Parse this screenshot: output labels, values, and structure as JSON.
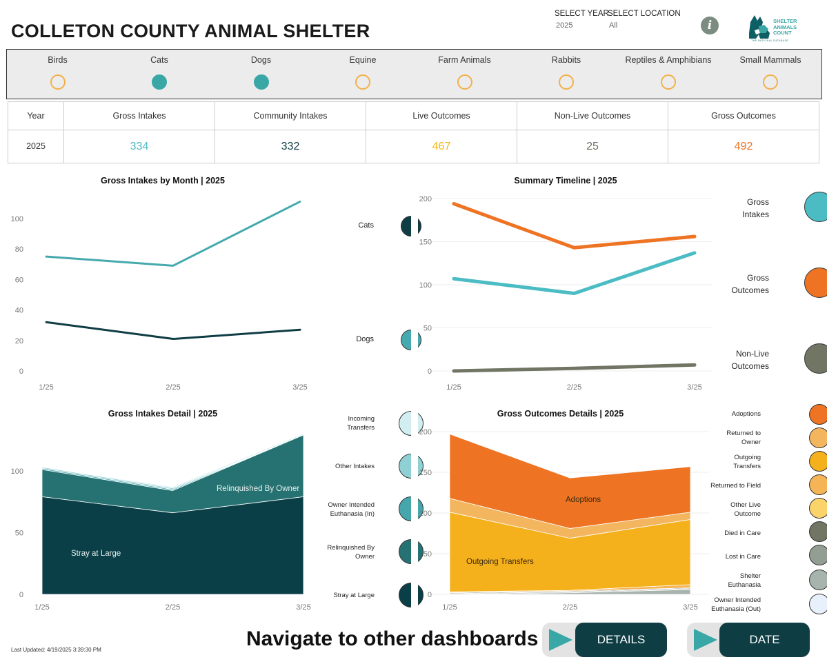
{
  "header": {
    "title": "COLLETON COUNTY ANIMAL SHELTER",
    "select_year_label": "SELECT YEAR",
    "select_year_value": "2025",
    "select_location_label": "SELECT LOCATION",
    "select_location_value": "All",
    "info_glyph": "i",
    "logo_line1": "SHELTER",
    "logo_line2": "ANIMALS",
    "logo_line3": "COUNT",
    "logo_sub": "THE NATIONAL DATABASE"
  },
  "filters": [
    {
      "label": "Birds",
      "selected": false
    },
    {
      "label": "Cats",
      "selected": true
    },
    {
      "label": "Dogs",
      "selected": true
    },
    {
      "label": "Equine",
      "selected": false
    },
    {
      "label": "Farm Animals",
      "selected": false
    },
    {
      "label": "Rabbits",
      "selected": false
    },
    {
      "label": "Reptiles & Amphibians",
      "selected": false
    },
    {
      "label": "Small Mammals",
      "selected": false
    }
  ],
  "kpi": {
    "headers": [
      "Year",
      "Gross Intakes",
      "Community Intakes",
      "Live Outcomes",
      "Non-Live Outcomes",
      "Gross Outcomes"
    ],
    "values": [
      "2025",
      "334",
      "332",
      "467",
      "25",
      "492"
    ],
    "colors": [
      "#333333",
      "#4bbcc4",
      "#0e3d44",
      "#f5b619",
      "#707564",
      "#ee7322"
    ]
  },
  "chart_data": [
    {
      "type": "line",
      "title": "Gross Intakes by Month | 2025",
      "categories": [
        "1/25",
        "2/25",
        "3/25"
      ],
      "series": [
        {
          "name": "Cats",
          "values": [
            75,
            69,
            111
          ],
          "color": "#45a9ad"
        },
        {
          "name": "Dogs",
          "values": [
            32,
            21,
            27
          ],
          "color": "#0e3d44"
        }
      ],
      "yticks": [
        "0",
        "20",
        "40",
        "60",
        "80",
        "100"
      ],
      "ylim": [
        0,
        113
      ],
      "legend": [
        {
          "label": "Cats",
          "color": "#0e3d44"
        },
        {
          "label": "Dogs",
          "color": "#45a9ad"
        }
      ]
    },
    {
      "type": "line",
      "title": "Summary Timeline | 2025",
      "categories": [
        "1/25",
        "2/25",
        "3/25"
      ],
      "series": [
        {
          "name": "Gross Outcomes",
          "values": [
            194,
            143,
            156
          ],
          "color": "#ee7322"
        },
        {
          "name": "Gross Intakes",
          "values": [
            107,
            90,
            137
          ],
          "color": "#4bbcc4"
        },
        {
          "name": "Non-Live Outcomes",
          "values": [
            0,
            3,
            7
          ],
          "color": "#707564"
        }
      ],
      "yticks": [
        "0",
        "50",
        "100",
        "150",
        "200"
      ],
      "ylim": [
        0,
        200
      ],
      "legend": [
        {
          "label1": "Gross",
          "label2": "Intakes",
          "color": "#4bbcc4"
        },
        {
          "label1": "Gross",
          "label2": "Outcomes",
          "color": "#ee7322"
        },
        {
          "label1": "Non-Live",
          "label2": "Outcomes",
          "color": "#707564"
        }
      ]
    },
    {
      "type": "area",
      "title": "Gross Intakes Detail | 2025",
      "categories": [
        "1/25",
        "2/25",
        "3/25"
      ],
      "series": [
        {
          "name": "Stray at Large",
          "values": [
            79,
            66,
            79
          ],
          "color": "#0b3f47"
        },
        {
          "name": "Relinquished By Owner",
          "values": [
            22,
            18,
            50
          ],
          "color": "#267272"
        },
        {
          "name": "Owner Intended Euthanasia (In)",
          "values": [
            1,
            1,
            0
          ],
          "color": "#46a6ab"
        },
        {
          "name": "Other Intakes",
          "values": [
            1,
            1,
            0
          ],
          "color": "#8fd0d4"
        },
        {
          "name": "Incoming Transfers",
          "values": [
            0,
            1,
            1
          ],
          "color": "#d3eef0"
        }
      ],
      "yticks": [
        "0",
        "50",
        "100"
      ],
      "ylim": [
        0,
        130
      ],
      "annotations": [
        "Stray at Large",
        "Relinquished By Owner"
      ],
      "legend": [
        {
          "label1": "Incoming",
          "label2": "Transfers",
          "color": "#d3eef0"
        },
        {
          "label1": "Other Intakes",
          "label2": "",
          "color": "#8fd0d4"
        },
        {
          "label1": "Owner Intended",
          "label2": "Euthanasia (In)",
          "color": "#46a6ab"
        },
        {
          "label1": "Relinquished By",
          "label2": "Owner",
          "color": "#267272"
        },
        {
          "label1": "Stray at Large",
          "label2": "",
          "color": "#0b3f47"
        }
      ]
    },
    {
      "type": "area",
      "title": "Gross Outcomes Details | 2025",
      "categories": [
        "1/25",
        "2/25",
        "3/25"
      ],
      "series": [
        {
          "name": "Shelter Euthanasia",
          "values": [
            0,
            2,
            6
          ],
          "color": "#a7b3ad"
        },
        {
          "name": "Lost in Care",
          "values": [
            1,
            1,
            1
          ],
          "color": "#939e92"
        },
        {
          "name": "Died in Care",
          "values": [
            1,
            1,
            1
          ],
          "color": "#707564"
        },
        {
          "name": "Other Live Outcome",
          "values": [
            0,
            0,
            0
          ],
          "color": "#fbd36b"
        },
        {
          "name": "Returned to Field",
          "values": [
            1,
            1,
            4
          ],
          "color": "#f5b556"
        },
        {
          "name": "Outgoing Transfers",
          "values": [
            98,
            64,
            80
          ],
          "color": "#f5b11c"
        },
        {
          "name": "Returned to Owner",
          "values": [
            17,
            12,
            9
          ],
          "color": "#f3b65f"
        },
        {
          "name": "Adoptions",
          "values": [
            79,
            62,
            56
          ],
          "color": "#ee7322"
        }
      ],
      "yticks": [
        "0",
        "50",
        "100",
        "150",
        "200"
      ],
      "ylim": [
        0,
        200
      ],
      "annotations": [
        "Adoptions",
        "Outgoing Transfers"
      ],
      "legend": [
        {
          "label1": "Adoptions",
          "label2": "",
          "color": "#ee7322"
        },
        {
          "label1": "Returned to",
          "label2": "Owner",
          "color": "#f3b65f"
        },
        {
          "label1": "Outgoing",
          "label2": "Transfers",
          "color": "#f5b11c"
        },
        {
          "label1": "Returned to Field",
          "label2": "",
          "color": "#f5b556"
        },
        {
          "label1": "Other Live",
          "label2": "Outcome",
          "color": "#fbd36b"
        },
        {
          "label1": "Died in Care",
          "label2": "",
          "color": "#707564"
        },
        {
          "label1": "Lost in Care",
          "label2": "",
          "color": "#939e92"
        },
        {
          "label1": "Shelter",
          "label2": "Euthanasia",
          "color": "#a7b3ad"
        },
        {
          "label1": "Owner Intended",
          "label2": "Euthanasia (Out)",
          "color": "#e8f1fb"
        }
      ]
    }
  ],
  "navigation": {
    "title": "Navigate to other dashboards",
    "details_label": "DETAILS",
    "date_compare_label": "DATE COMPARE"
  },
  "footer": {
    "last_updated": "Last Updated: 4/19/2025 3:39:30 PM"
  }
}
